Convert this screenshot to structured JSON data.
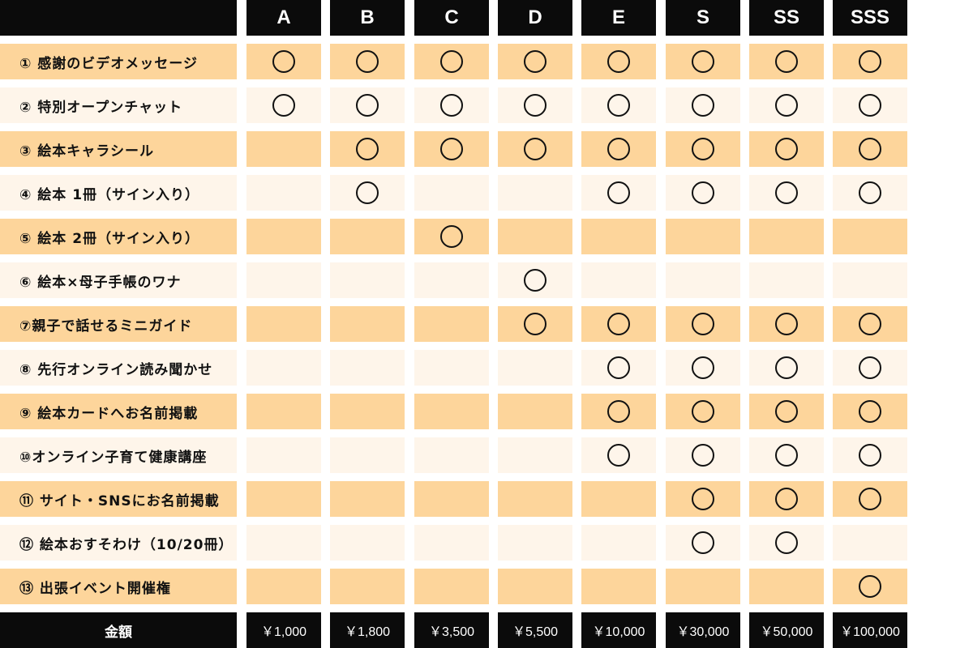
{
  "columns": [
    "A",
    "B",
    "C",
    "D",
    "E",
    "S",
    "SS",
    "SSS"
  ],
  "colors": {
    "header_bg": "#0b0b0b",
    "row_dark": "#fdd59b",
    "row_light": "#fef5ea"
  },
  "rows": [
    {
      "label": "① 感謝のビデオメッセージ",
      "marks": [
        1,
        1,
        1,
        1,
        1,
        1,
        1,
        1
      ]
    },
    {
      "label": "② 特別オープンチャット",
      "marks": [
        1,
        1,
        1,
        1,
        1,
        1,
        1,
        1
      ]
    },
    {
      "label": "③ 絵本キャラシール",
      "marks": [
        0,
        1,
        1,
        1,
        1,
        1,
        1,
        1
      ]
    },
    {
      "label": "④ 絵本 1冊（サイン入り）",
      "marks": [
        0,
        1,
        0,
        0,
        1,
        1,
        1,
        1
      ]
    },
    {
      "label": "⑤ 絵本 2冊（サイン入り）",
      "marks": [
        0,
        0,
        1,
        0,
        0,
        0,
        0,
        0
      ]
    },
    {
      "label": "⑥ 絵本×母子手帳のワナ",
      "marks": [
        0,
        0,
        0,
        1,
        0,
        0,
        0,
        0
      ]
    },
    {
      "label": "⑦親子で話せるミニガイド",
      "marks": [
        0,
        0,
        0,
        1,
        1,
        1,
        1,
        1
      ]
    },
    {
      "label": "⑧ 先行オンライン読み聞かせ",
      "marks": [
        0,
        0,
        0,
        0,
        1,
        1,
        1,
        1
      ]
    },
    {
      "label": "⑨ 絵本カードへお名前掲載",
      "marks": [
        0,
        0,
        0,
        0,
        1,
        1,
        1,
        1
      ]
    },
    {
      "label": "⑩オンライン子育て健康講座",
      "marks": [
        0,
        0,
        0,
        0,
        1,
        1,
        1,
        1
      ]
    },
    {
      "label": "⑪ サイト・SNSにお名前掲載",
      "marks": [
        0,
        0,
        0,
        0,
        0,
        1,
        1,
        1
      ]
    },
    {
      "label": "⑫ 絵本おすそわけ（10/20冊）",
      "marks": [
        0,
        0,
        0,
        0,
        0,
        1,
        1,
        0
      ]
    },
    {
      "label": "⑬ 出張イベント開催権",
      "marks": [
        0,
        0,
        0,
        0,
        0,
        0,
        0,
        1
      ]
    }
  ],
  "footer": {
    "label": "金額",
    "prices": [
      "￥1,000",
      "￥1,800",
      "￥3,500",
      "￥5,500",
      "￥10,000",
      "￥30,000",
      "￥50,000",
      "￥100,000"
    ]
  }
}
